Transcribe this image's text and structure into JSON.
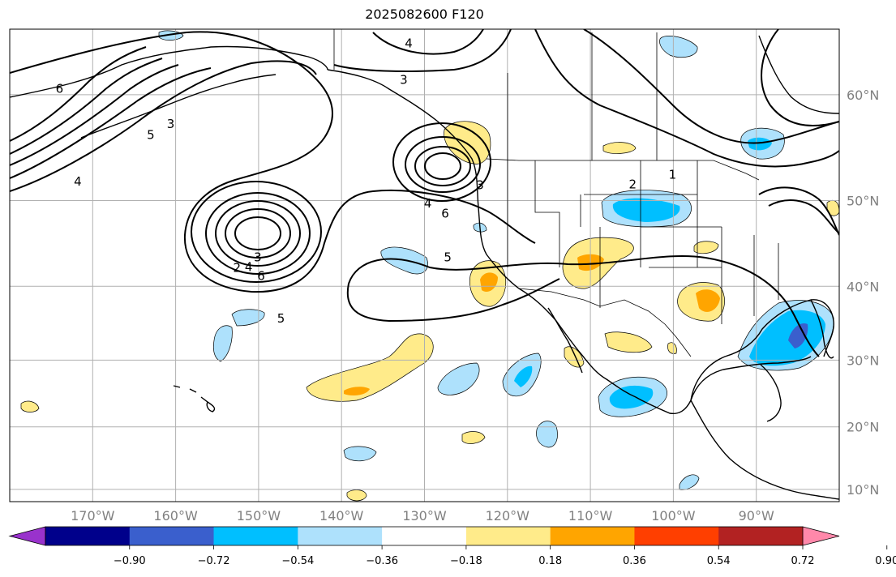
{
  "title": "2025082600 F120",
  "colors": {
    "grid": "#b0b0b0",
    "axis_label": "#808080",
    "contour": "#000000"
  },
  "longitude_ticks": [
    {
      "value": -170,
      "label": "170°W"
    },
    {
      "value": -160,
      "label": "160°W"
    },
    {
      "value": -150,
      "label": "150°W"
    },
    {
      "value": -140,
      "label": "140°W"
    },
    {
      "value": -130,
      "label": "130°W"
    },
    {
      "value": -120,
      "label": "120°W"
    },
    {
      "value": -110,
      "label": "110°W"
    },
    {
      "value": -100,
      "label": "100°W"
    },
    {
      "value": -90,
      "label": "90°W"
    }
  ],
  "latitude_ticks": [
    {
      "value": 60,
      "label": "60°N"
    },
    {
      "value": 50,
      "label": "50°N"
    },
    {
      "value": 40,
      "label": "40°N"
    },
    {
      "value": 30,
      "label": "30°N"
    },
    {
      "value": 20,
      "label": "20°N"
    },
    {
      "value": 10,
      "label": "10°N"
    }
  ],
  "map_extent": {
    "lon": [
      -180,
      -80
    ],
    "lat": [
      8,
      65
    ]
  },
  "colorbar": {
    "colors": [
      "#9932cc",
      "#00008b",
      "#3a5fcd",
      "#00bfff",
      "#aee1fc",
      "#ffffff",
      "#ffeb8a",
      "#ffa500",
      "#ff3f00",
      "#b22222",
      "#ff88aa"
    ],
    "tick_labels": [
      "−0.90",
      "−0.72",
      "−0.54",
      "−0.36",
      "−0.18",
      "0.18",
      "0.36",
      "0.54",
      "0.72",
      "0.90"
    ],
    "extend": "both"
  },
  "contour_labels": [
    {
      "text": "6",
      "lon": -174.0,
      "lat": 60.5
    },
    {
      "text": "4",
      "lon": -171.8,
      "lat": 52.0
    },
    {
      "text": "5",
      "lon": -163.0,
      "lat": 56.5
    },
    {
      "text": "3",
      "lon": -160.6,
      "lat": 57.5
    },
    {
      "text": "4",
      "lon": -131.9,
      "lat": 64.0
    },
    {
      "text": "3",
      "lon": -132.5,
      "lat": 61.2
    },
    {
      "text": "2",
      "lon": -152.6,
      "lat": 42.3
    },
    {
      "text": "4",
      "lon": -151.2,
      "lat": 42.4
    },
    {
      "text": "3",
      "lon": -150.1,
      "lat": 43.6
    },
    {
      "text": "6",
      "lon": -149.7,
      "lat": 41.3
    },
    {
      "text": "5",
      "lon": -147.3,
      "lat": 35.8
    },
    {
      "text": "3",
      "lon": -123.3,
      "lat": 51.6
    },
    {
      "text": "4",
      "lon": -129.6,
      "lat": 49.7
    },
    {
      "text": "6",
      "lon": -127.5,
      "lat": 48.6
    },
    {
      "text": "5",
      "lon": -127.2,
      "lat": 43.6
    },
    {
      "text": "2",
      "lon": -104.9,
      "lat": 51.7
    },
    {
      "text": "1",
      "lon": -100.1,
      "lat": 52.7
    }
  ]
}
